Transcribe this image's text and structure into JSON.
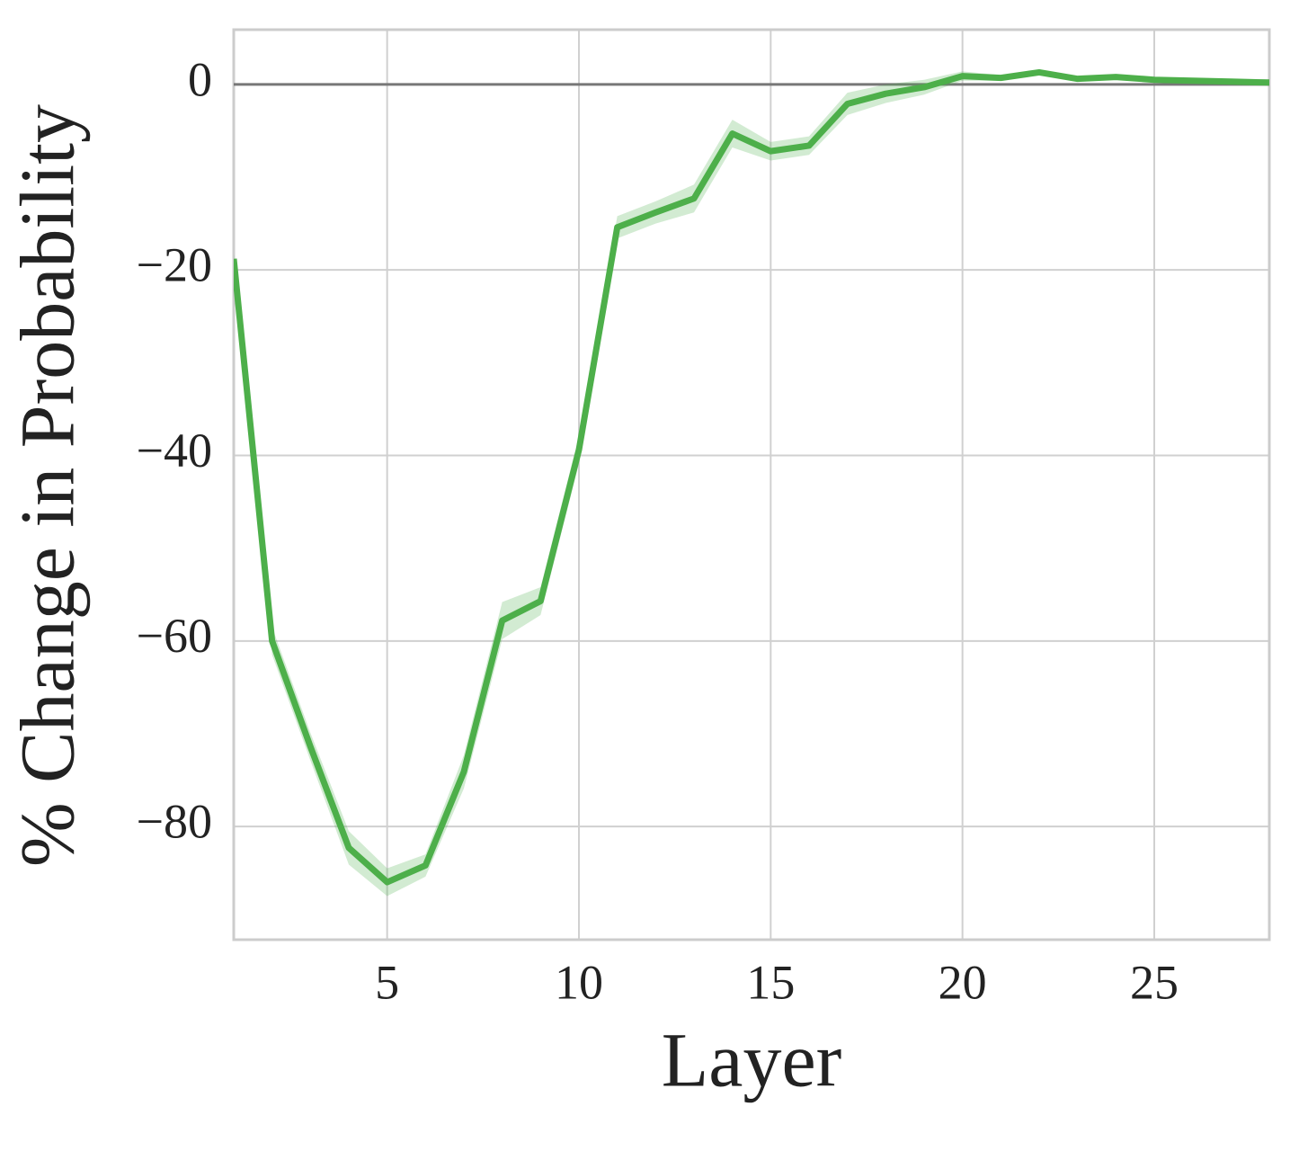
{
  "chart_data": {
    "type": "line",
    "xlabel": "Layer",
    "ylabel": "% Change in Probability",
    "x": [
      1,
      2,
      3,
      4,
      5,
      6,
      7,
      8,
      9,
      10,
      11,
      12,
      13,
      14,
      15,
      16,
      17,
      18,
      19,
      20,
      21,
      22,
      23,
      24,
      25,
      26,
      27,
      28
    ],
    "series": [
      {
        "color": "#4daf4a",
        "values": [
          -18.8,
          -60,
          -71.4,
          -82.3,
          -86,
          -84.2,
          -74.1,
          -57.8,
          -55.7,
          -39.4,
          -15.4,
          -13.8,
          -12.3,
          -5.3,
          -7.2,
          -6.6,
          -2.1,
          -1,
          -0.3,
          0.9,
          0.7,
          1.3,
          0.6,
          0.8,
          0.5,
          0.4,
          0.3,
          0.2
        ],
        "error": [
          0.5,
          1.5,
          1.5,
          1.8,
          1.5,
          1.2,
          1.8,
          2,
          1.5,
          1.5,
          1.2,
          1.2,
          1.5,
          1.5,
          1,
          1,
          1.2,
          1,
          0.8,
          0.5,
          0.3,
          0.3,
          0.3,
          0.3,
          0.3,
          0.3,
          0.3,
          0.3
        ]
      }
    ],
    "xlim": [
      1,
      28
    ],
    "ylim": [
      -92.2,
      5.9
    ],
    "xticks": [
      5,
      10,
      15,
      20,
      25
    ],
    "yticks": [
      {
        "value": -80,
        "label": "−80"
      },
      {
        "value": -60,
        "label": "−60"
      },
      {
        "value": -40,
        "label": "−40"
      },
      {
        "value": -20,
        "label": "−20"
      },
      0
    ],
    "hline": 0,
    "grid": true
  }
}
